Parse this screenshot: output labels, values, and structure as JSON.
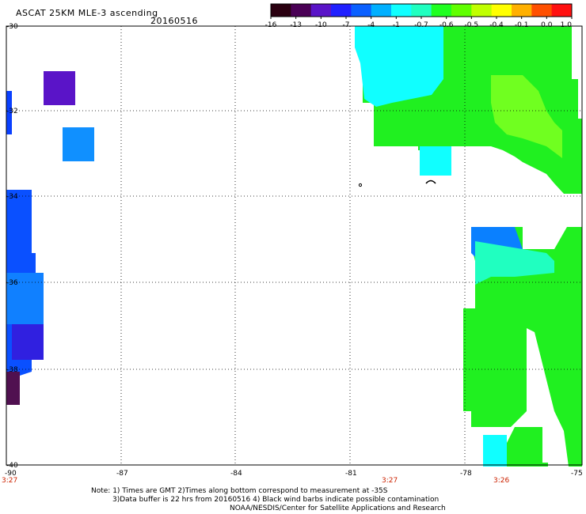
{
  "header": {
    "title": "ASCAT 25KM MLE-3 ascending",
    "date": "20160516"
  },
  "colorbar": {
    "colors": [
      "#2a0010",
      "#4a0055",
      "#5a14c8",
      "#2020ff",
      "#0a60ff",
      "#00b0ff",
      "#10ffff",
      "#20ffc0",
      "#20ff20",
      "#60ff00",
      "#c0ff00",
      "#ffff00",
      "#ffb000",
      "#ff5000",
      "#ff1010"
    ],
    "ticks": [
      "-16",
      "-13",
      "-10",
      "-7",
      "-4",
      "-1",
      "-0.7",
      "-0.6",
      "-0.5",
      "-0.4",
      "-0.1",
      "0.0",
      "1.0"
    ]
  },
  "axes": {
    "lat_labels": [
      "-30",
      "-32",
      "-34",
      "-36",
      "-38",
      "-40"
    ],
    "lon_labels": [
      "-90",
      "-87",
      "-84",
      "-81",
      "-78",
      "-75"
    ],
    "time_labels": [
      "3:27",
      "3:27",
      "3:26"
    ]
  },
  "notes": [
    "Note: 1) Times are GMT 2)Times along bottom correspond to measurement at -35S",
    "3)Data buffer is 22 hrs from 20160516 4) Black wind barbs indicate possible contamination",
    "NOAA/NESDIS/Center for Satellite Applications and Research"
  ]
}
